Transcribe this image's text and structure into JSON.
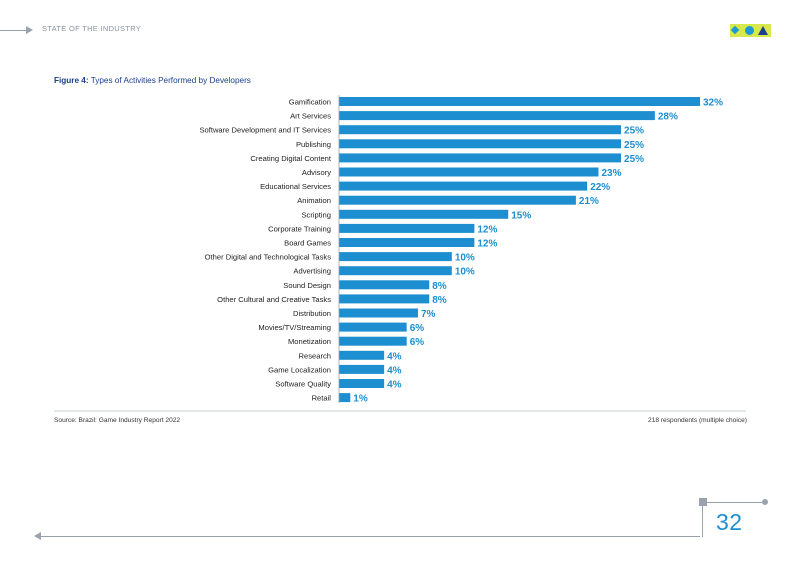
{
  "header": {
    "section_title": "STATE OF THE INDUSTRY"
  },
  "logo": {
    "name": "brand-logo"
  },
  "figure": {
    "label": "Figure 4:",
    "title": "Types of Activities Performed by Developers"
  },
  "chart_data": {
    "type": "bar",
    "orientation": "horizontal",
    "title": "Types of Activities Performed by Developers",
    "categories": [
      "Gamification",
      "Art Services",
      "Software Development and IT Services",
      "Publishing",
      "Creating Digital Content",
      "Advisory",
      "Educational Services",
      "Animation",
      "Scripting",
      "Corporate Training",
      "Board Games",
      "Other Digital and Technological Tasks",
      "Advertising",
      "Sound Design",
      "Other Cultural and Creative Tasks",
      "Distribution",
      "Movies/TV/Streaming",
      "Monetization",
      "Research",
      "Game Localization",
      "Software Quality",
      "Retail"
    ],
    "values": [
      32,
      28,
      25,
      25,
      25,
      23,
      22,
      21,
      15,
      12,
      12,
      10,
      10,
      8,
      8,
      7,
      6,
      6,
      4,
      4,
      4,
      1
    ],
    "value_labels": [
      "32%",
      "28%",
      "25%",
      "25%",
      "25%",
      "23%",
      "22%",
      "21%",
      "15%",
      "12%",
      "12%",
      "10%",
      "10%",
      "8%",
      "8%",
      "7%",
      "6%",
      "6%",
      "4%",
      "4%",
      "4%",
      "1%"
    ],
    "unit": "%",
    "xlim": [
      0,
      32
    ],
    "bar_color": "#1d8fd0",
    "label_color": "#1d8fd0"
  },
  "footer": {
    "source": "Source: Brazil: Game Industry Report 2022",
    "respondents": "218 respondents (multiple choice)",
    "page_number": "32"
  },
  "colors": {
    "accent": "#1d8fd0",
    "title": "#1b3f8b",
    "rule": "#9aa3ad",
    "logo_bg": "#d7e84a"
  }
}
